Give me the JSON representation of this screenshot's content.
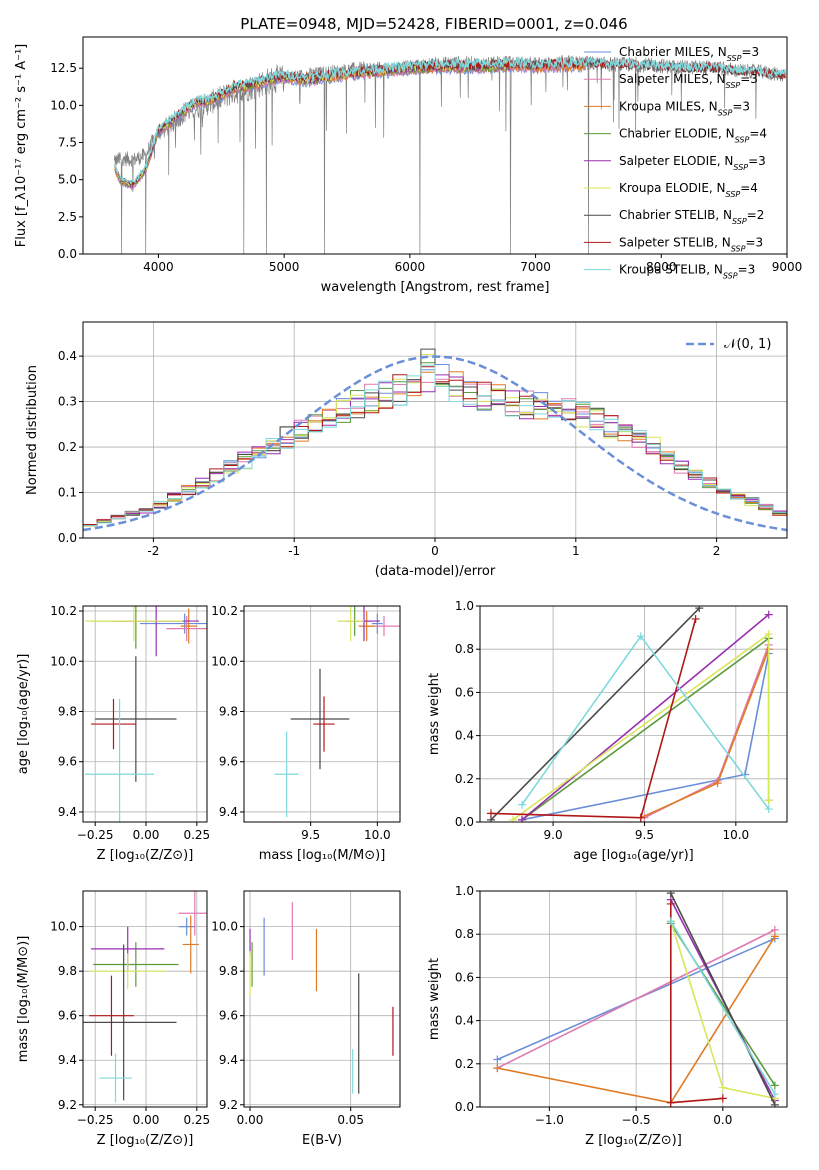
{
  "figure": {
    "title": "PLATE=0948, MJD=52428, FIBERID=0001, z=0.046"
  },
  "colors": {
    "chabrier_miles": "#6a8fd8",
    "salpeter_miles": "#e07ab0",
    "kroupa_miles": "#e07b25",
    "chabrier_elodie": "#5c9a3c",
    "salpeter_elodie": "#9a2fb0",
    "kroupa_elodie": "#d8e65a",
    "chabrier_stelib": "#4a4a4a",
    "salpeter_stelib": "#b01818",
    "kroupa_stelib": "#7fd8dc",
    "data": "#808080",
    "normal": "#6a8fd8",
    "grid": "#b0b0b0"
  },
  "chart_data": [
    {
      "id": "spectrum",
      "type": "line",
      "xlabel": "wavelength [Angstrom, rest frame]",
      "ylabel": "Flux [f_λ10⁻¹⁷ erg cm⁻² s⁻¹ A⁻¹]",
      "xlim": [
        3400,
        9000
      ],
      "ylim": [
        0,
        14.6
      ],
      "xticks": [
        4000,
        5000,
        6000,
        7000,
        8000,
        9000
      ],
      "yticks": [
        0.0,
        2.5,
        5.0,
        7.5,
        10.0,
        12.5
      ],
      "grid": false,
      "legend_position": "right",
      "legend": [
        {
          "label": "Chabrier MILES, N",
          "sub": "SSP",
          "suffix": "=3",
          "color_key": "chabrier_miles"
        },
        {
          "label": "Salpeter MILES, N",
          "sub": "SSP",
          "suffix": "=3",
          "color_key": "salpeter_miles"
        },
        {
          "label": "Kroupa MILES, N",
          "sub": "SSP",
          "suffix": "=3",
          "color_key": "kroupa_miles"
        },
        {
          "label": "Chabrier ELODIE, N",
          "sub": "SSP",
          "suffix": "=4",
          "color_key": "chabrier_elodie"
        },
        {
          "label": "Salpeter ELODIE, N",
          "sub": "SSP",
          "suffix": "=3",
          "color_key": "salpeter_elodie"
        },
        {
          "label": "Kroupa ELODIE, N",
          "sub": "SSP",
          "suffix": "=4",
          "color_key": "kroupa_elodie"
        },
        {
          "label": "Chabrier STELIB, N",
          "sub": "SSP",
          "suffix": "=2",
          "color_key": "chabrier_stelib"
        },
        {
          "label": "Salpeter STELIB, N",
          "sub": "SSP",
          "suffix": "=3",
          "color_key": "salpeter_stelib"
        },
        {
          "label": "Kroupa STELIB, N",
          "sub": "SSP",
          "suffix": "=3",
          "color_key": "kroupa_stelib"
        }
      ],
      "data_envelope": {
        "x": [
          3650,
          3700,
          3800,
          3900,
          4000,
          4100,
          4200,
          4300,
          4400,
          4500,
          4600,
          4700,
          4800,
          4900,
          5000,
          5200,
          5400,
          5600,
          5800,
          6000,
          6200,
          6400,
          6600,
          6800,
          7000,
          7200,
          7400,
          7600,
          7800,
          8000,
          8200,
          8400,
          8600,
          8800,
          8950
        ],
        "y": [
          6.2,
          6.5,
          6.4,
          6.7,
          8.3,
          8.8,
          9.6,
          9.9,
          10.2,
          10.6,
          11.0,
          11.2,
          11.5,
          11.8,
          11.9,
          12.1,
          12.3,
          12.5,
          12.5,
          12.6,
          12.8,
          12.9,
          12.8,
          12.9,
          12.8,
          12.9,
          12.9,
          12.8,
          12.8,
          12.7,
          12.6,
          12.6,
          12.4,
          12.3,
          12.1
        ]
      },
      "model_envelope": {
        "x": [
          3650,
          3700,
          3800,
          3900,
          4000,
          4100,
          4200,
          4300,
          4400,
          4500,
          4600,
          4700,
          4800,
          4900,
          5000,
          5200,
          5400,
          5600,
          5800,
          6000,
          6200,
          6400,
          6600,
          6800,
          7000,
          7200,
          7400
        ],
        "y": [
          5.8,
          4.9,
          4.6,
          5.7,
          8.3,
          8.9,
          9.6,
          10.2,
          10.3,
          10.7,
          11.2,
          11.3,
          11.5,
          11.8,
          11.9,
          11.7,
          12.0,
          12.2,
          12.3,
          12.5,
          12.6,
          12.6,
          12.6,
          12.7,
          12.6,
          12.7,
          12.7
        ]
      },
      "deep_absorptions": [
        3900,
        4680,
        4860,
        5320,
        6080,
        6800,
        7420
      ]
    },
    {
      "id": "residuals",
      "type": "bar",
      "xlabel": "(data-model)/error",
      "ylabel": "Normed distribution",
      "xlim": [
        -2.5,
        2.5
      ],
      "ylim": [
        0,
        0.475
      ],
      "xticks": [
        -2,
        -1,
        0,
        1,
        2
      ],
      "yticks": [
        0.0,
        0.1,
        0.2,
        0.3,
        0.4
      ],
      "grid": true,
      "bin_width": 0.1,
      "legend_position": "top-right",
      "legend_label": "𝒩(0, 1)",
      "residual_envelope": {
        "x": [
          -2.5,
          -2.0,
          -1.5,
          -1.0,
          -0.5,
          0.0,
          0.5,
          1.0,
          1.5,
          2.0,
          2.5
        ],
        "y": [
          0.025,
          0.065,
          0.145,
          0.23,
          0.3,
          0.35,
          0.3,
          0.28,
          0.21,
          0.11,
          0.05
        ]
      }
    },
    {
      "id": "age_vs_Z",
      "type": "scatter",
      "xlabel": "Z [log₁₀(Z/Z⊙)]",
      "ylabel": "age  [log₁₀(age/yr)]",
      "xlim": [
        -0.31,
        0.3
      ],
      "ylim": [
        9.36,
        10.22
      ],
      "xticks": [
        -0.25,
        0.0,
        0.25
      ],
      "xticklabels": [
        "−0.25",
        "0.00",
        "0.25"
      ],
      "yticks": [
        9.4,
        9.6,
        9.8,
        10.0,
        10.2
      ],
      "grid": true,
      "points": [
        {
          "k": "chabrier_miles",
          "x": 0.19,
          "y": 10.15,
          "xe": 0.22,
          "ye": 0.04
        },
        {
          "k": "salpeter_miles",
          "x": 0.2,
          "y": 10.13,
          "xe": 0.1,
          "ye": 0.05
        },
        {
          "k": "kroupa_miles",
          "x": 0.21,
          "y": 10.14,
          "xe": 0.04,
          "ye": 0.07
        },
        {
          "k": "chabrier_elodie",
          "x": -0.05,
          "y": 10.16,
          "xe": 0.22,
          "ye": 0.11
        },
        {
          "k": "salpeter_elodie",
          "x": 0.05,
          "y": 10.16,
          "xe": 0.21,
          "ye": 0.14
        },
        {
          "k": "kroupa_elodie",
          "x": -0.06,
          "y": 10.16,
          "xe": 0.24,
          "ye": 0.08
        },
        {
          "k": "chabrier_stelib",
          "x": -0.05,
          "y": 9.77,
          "xe": 0.2,
          "ye": 0.25
        },
        {
          "k": "salpeter_stelib",
          "x": -0.16,
          "y": 9.75,
          "xe": 0.11,
          "ye": 0.1
        },
        {
          "k": "kroupa_stelib",
          "x": -0.13,
          "y": 9.55,
          "xe": 0.17,
          "ye": 0.3
        }
      ]
    },
    {
      "id": "age_vs_mass",
      "type": "scatter",
      "xlabel": "mass [log₁₀(M/M⊙)]",
      "ylabel": "",
      "xlim": [
        9.0,
        10.17
      ],
      "ylim": [
        9.36,
        10.22
      ],
      "xticks": [
        9.5,
        10.0
      ],
      "yticks": [
        9.4,
        9.6,
        9.8,
        10.0,
        10.2
      ],
      "grid": true,
      "points": [
        {
          "k": "chabrier_miles",
          "x": 10.0,
          "y": 10.15,
          "xe": 0.04,
          "ye": 0.04
        },
        {
          "k": "salpeter_miles",
          "x": 10.05,
          "y": 10.14,
          "xe": 0.14,
          "ye": 0.04
        },
        {
          "k": "kroupa_miles",
          "x": 9.92,
          "y": 10.14,
          "xe": 0.06,
          "ye": 0.06
        },
        {
          "k": "chabrier_elodie",
          "x": 9.83,
          "y": 10.16,
          "xe": 0.12,
          "ye": 0.06
        },
        {
          "k": "salpeter_elodie",
          "x": 9.9,
          "y": 10.16,
          "xe": 0.12,
          "ye": 0.08
        },
        {
          "k": "kroupa_elodie",
          "x": 9.8,
          "y": 10.16,
          "xe": 0.1,
          "ye": 0.08
        },
        {
          "k": "chabrier_stelib",
          "x": 9.57,
          "y": 9.77,
          "xe": 0.22,
          "ye": 0.2
        },
        {
          "k": "salpeter_stelib",
          "x": 9.6,
          "y": 9.75,
          "xe": 0.08,
          "ye": 0.11
        },
        {
          "k": "kroupa_stelib",
          "x": 9.32,
          "y": 9.55,
          "xe": 0.09,
          "ye": 0.17
        }
      ]
    },
    {
      "id": "weight_vs_age",
      "type": "line",
      "xlabel": "age  [log₁₀(age/yr)]",
      "ylabel": "mass weight",
      "xlim": [
        8.6,
        10.28
      ],
      "ylim": [
        0,
        1
      ],
      "xticks": [
        9.0,
        9.5,
        10.0
      ],
      "yticks": [
        0.0,
        0.2,
        0.4,
        0.6,
        0.8,
        1.0
      ],
      "grid": true,
      "series": [
        {
          "k": "chabrier_miles",
          "x": [
            8.83,
            10.05,
            10.18
          ],
          "y": [
            0.01,
            0.22,
            0.78
          ]
        },
        {
          "k": "salpeter_miles",
          "x": [
            9.5,
            9.9,
            10.18
          ],
          "y": [
            0.02,
            0.19,
            0.82
          ]
        },
        {
          "k": "kroupa_miles",
          "x": [
            9.48,
            9.9,
            10.18
          ],
          "y": [
            0.02,
            0.18,
            0.8
          ]
        },
        {
          "k": "chabrier_elodie",
          "x": [
            8.83,
            10.18,
            10.18
          ],
          "y": [
            0.01,
            0.85,
            0.1
          ]
        },
        {
          "k": "salpeter_elodie",
          "x": [
            8.83,
            10.18
          ],
          "y": [
            0.01,
            0.96
          ]
        },
        {
          "k": "kroupa_elodie",
          "x": [
            8.78,
            10.18,
            10.18
          ],
          "y": [
            0.01,
            0.87,
            0.1
          ]
        },
        {
          "k": "chabrier_stelib",
          "x": [
            8.66,
            9.8
          ],
          "y": [
            0.01,
            0.99
          ]
        },
        {
          "k": "salpeter_stelib",
          "x": [
            8.66,
            9.48,
            9.78
          ],
          "y": [
            0.04,
            0.02,
            0.94
          ]
        },
        {
          "k": "kroupa_stelib",
          "x": [
            8.83,
            9.48,
            10.18
          ],
          "y": [
            0.08,
            0.86,
            0.06
          ]
        }
      ]
    },
    {
      "id": "mass_vs_Z",
      "type": "scatter",
      "xlabel": "Z [log₁₀(Z/Z⊙)]",
      "ylabel": "mass [log₁₀(M/M⊙)]",
      "xlim": [
        -0.31,
        0.3
      ],
      "ylim": [
        9.19,
        10.16
      ],
      "xticks": [
        -0.25,
        0.0,
        0.25
      ],
      "xticklabels": [
        "−0.25",
        "0.00",
        "0.25"
      ],
      "yticks": [
        9.2,
        9.4,
        9.6,
        9.8,
        10.0
      ],
      "grid": true,
      "points": [
        {
          "k": "chabrier_miles",
          "x": 0.2,
          "y": 10.0,
          "xe": 0.04,
          "ye": 0.04
        },
        {
          "k": "salpeter_miles",
          "x": 0.24,
          "y": 10.06,
          "xe": 0.08,
          "ye": 0.1
        },
        {
          "k": "kroupa_miles",
          "x": 0.22,
          "y": 9.92,
          "xe": 0.04,
          "ye": 0.13
        },
        {
          "k": "chabrier_elodie",
          "x": -0.05,
          "y": 9.83,
          "xe": 0.21,
          "ye": 0.1
        },
        {
          "k": "salpeter_elodie",
          "x": -0.09,
          "y": 9.9,
          "xe": 0.18,
          "ye": 0.1
        },
        {
          "k": "kroupa_elodie",
          "x": -0.09,
          "y": 9.8,
          "xe": 0.19,
          "ye": 0.08
        },
        {
          "k": "chabrier_stelib",
          "x": -0.11,
          "y": 9.57,
          "xe": 0.26,
          "ye": 0.35
        },
        {
          "k": "salpeter_stelib",
          "x": -0.17,
          "y": 9.6,
          "xe": 0.11,
          "ye": 0.18
        },
        {
          "k": "kroupa_stelib",
          "x": -0.15,
          "y": 9.32,
          "xe": 0.08,
          "ye": 0.11
        }
      ]
    },
    {
      "id": "mass_vs_ebv",
      "type": "scatter",
      "xlabel": "E(B-V)",
      "ylabel": "",
      "xlim": [
        -0.003,
        0.0745
      ],
      "ylim": [
        9.19,
        10.16
      ],
      "xticks": [
        0.0,
        0.05
      ],
      "xticklabels": [
        "0.00",
        "0.05"
      ],
      "yticks": [
        9.2,
        9.4,
        9.6,
        9.8,
        10.0
      ],
      "grid": true,
      "points": [
        {
          "k": "chabrier_miles",
          "x": 0.007,
          "y": 9.91,
          "xe": 0.0,
          "ye": 0.13
        },
        {
          "k": "salpeter_miles",
          "x": 0.021,
          "y": 9.98,
          "xe": 0.0,
          "ye": 0.13
        },
        {
          "k": "kroupa_miles",
          "x": 0.033,
          "y": 9.85,
          "xe": 0.0,
          "ye": 0.14
        },
        {
          "k": "chabrier_elodie",
          "x": 0.001,
          "y": 9.83,
          "xe": 0.0,
          "ye": 0.1
        },
        {
          "k": "salpeter_elodie",
          "x": 0.0,
          "y": 9.93,
          "xe": 0.0,
          "ye": 0.06
        },
        {
          "k": "kroupa_elodie",
          "x": 0.0,
          "y": 9.79,
          "xe": 0.0,
          "ye": 0.1
        },
        {
          "k": "chabrier_stelib",
          "x": 0.054,
          "y": 9.52,
          "xe": 0.0,
          "ye": 0.27
        },
        {
          "k": "salpeter_stelib",
          "x": 0.071,
          "y": 9.53,
          "xe": 0.0,
          "ye": 0.11
        },
        {
          "k": "kroupa_stelib",
          "x": 0.051,
          "y": 9.35,
          "xe": 0.0,
          "ye": 0.1
        }
      ]
    },
    {
      "id": "weight_vs_Z",
      "type": "line",
      "xlabel": "Z [log₁₀(Z/Z⊙)]",
      "ylabel": "mass weight",
      "xlim": [
        -1.4,
        0.37
      ],
      "ylim": [
        0,
        1
      ],
      "xticks": [
        -1.0,
        -0.5,
        0.0
      ],
      "xticklabels": [
        "−1.0",
        "−0.5",
        "0.0"
      ],
      "yticks": [
        0.0,
        0.2,
        0.4,
        0.6,
        0.8,
        1.0
      ],
      "grid": true,
      "series": [
        {
          "k": "chabrier_miles",
          "x": [
            -1.3,
            0.3
          ],
          "y": [
            0.22,
            0.78
          ]
        },
        {
          "k": "salpeter_miles",
          "x": [
            -1.3,
            0.3
          ],
          "y": [
            0.18,
            0.82
          ]
        },
        {
          "k": "kroupa_miles",
          "x": [
            -1.3,
            -0.3,
            0.3
          ],
          "y": [
            0.18,
            0.02,
            0.79
          ]
        },
        {
          "k": "chabrier_elodie",
          "x": [
            -0.3,
            0.3
          ],
          "y": [
            0.85,
            0.1
          ]
        },
        {
          "k": "salpeter_elodie",
          "x": [
            -0.3,
            0.3
          ],
          "y": [
            0.96,
            0.03
          ]
        },
        {
          "k": "kroupa_elodie",
          "x": [
            -0.3,
            0.0,
            0.3
          ],
          "y": [
            0.86,
            0.09,
            0.04
          ]
        },
        {
          "k": "chabrier_stelib",
          "x": [
            -0.3,
            0.3
          ],
          "y": [
            0.99,
            0.01
          ]
        },
        {
          "k": "salpeter_stelib",
          "x": [
            0.0,
            -0.3,
            -0.3
          ],
          "y": [
            0.04,
            0.02,
            0.94
          ]
        },
        {
          "k": "kroupa_stelib",
          "x": [
            -0.3,
            0.3
          ],
          "y": [
            0.86,
            0.06
          ]
        }
      ]
    }
  ]
}
